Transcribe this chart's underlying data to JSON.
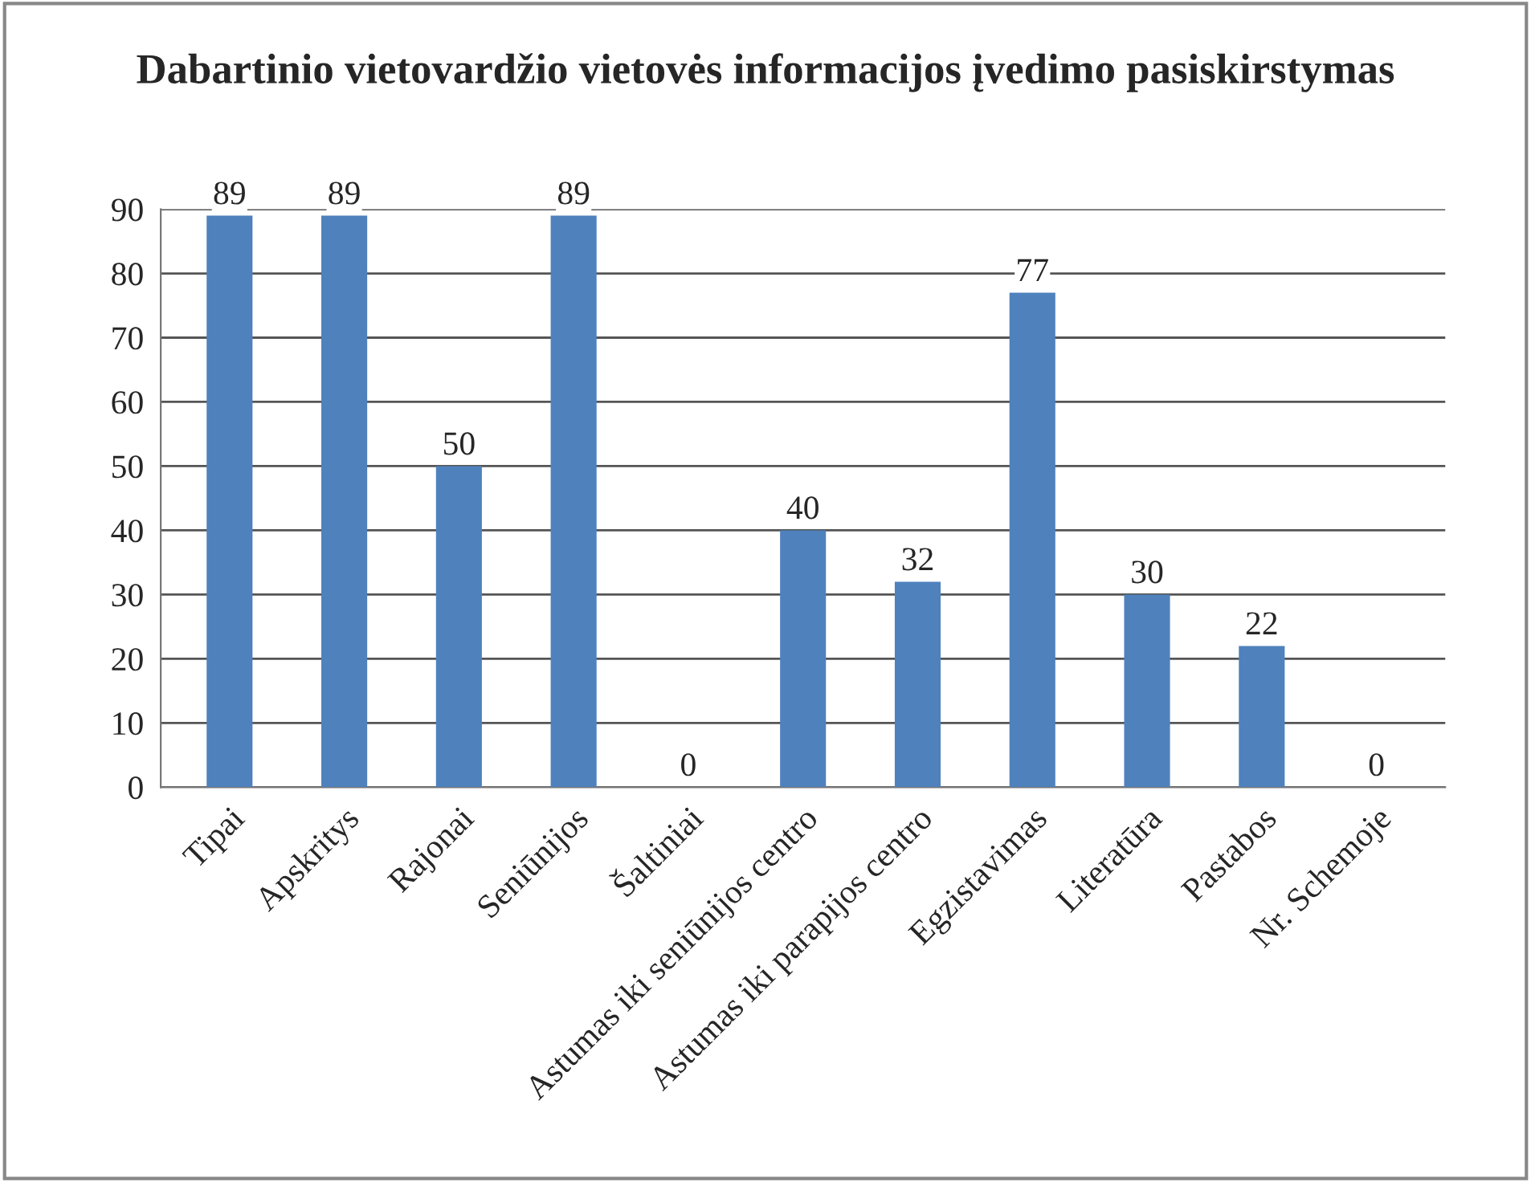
{
  "chart_data": {
    "type": "bar",
    "title": "Dabartinio vietovardžio vietovės informacijos įvedimo pasiskirstymas",
    "categories": [
      "Tipai",
      "Apskritys",
      "Rajonai",
      "Seniūnijos",
      "Šaltiniai",
      "Astumas iki seniūnijos centro",
      "Astumas iki parapijos centro",
      "Egzistavimas",
      "Literatūra",
      "Pastabos",
      "Nr. Schemoje"
    ],
    "values": [
      89,
      89,
      50,
      89,
      0,
      40,
      32,
      77,
      30,
      22,
      0
    ],
    "color": "#4f81bd",
    "ylim": [
      0,
      90
    ],
    "yticks": [
      0,
      10,
      20,
      30,
      40,
      50,
      60,
      70,
      80,
      90
    ],
    "grid": "y",
    "data_labels": true
  }
}
